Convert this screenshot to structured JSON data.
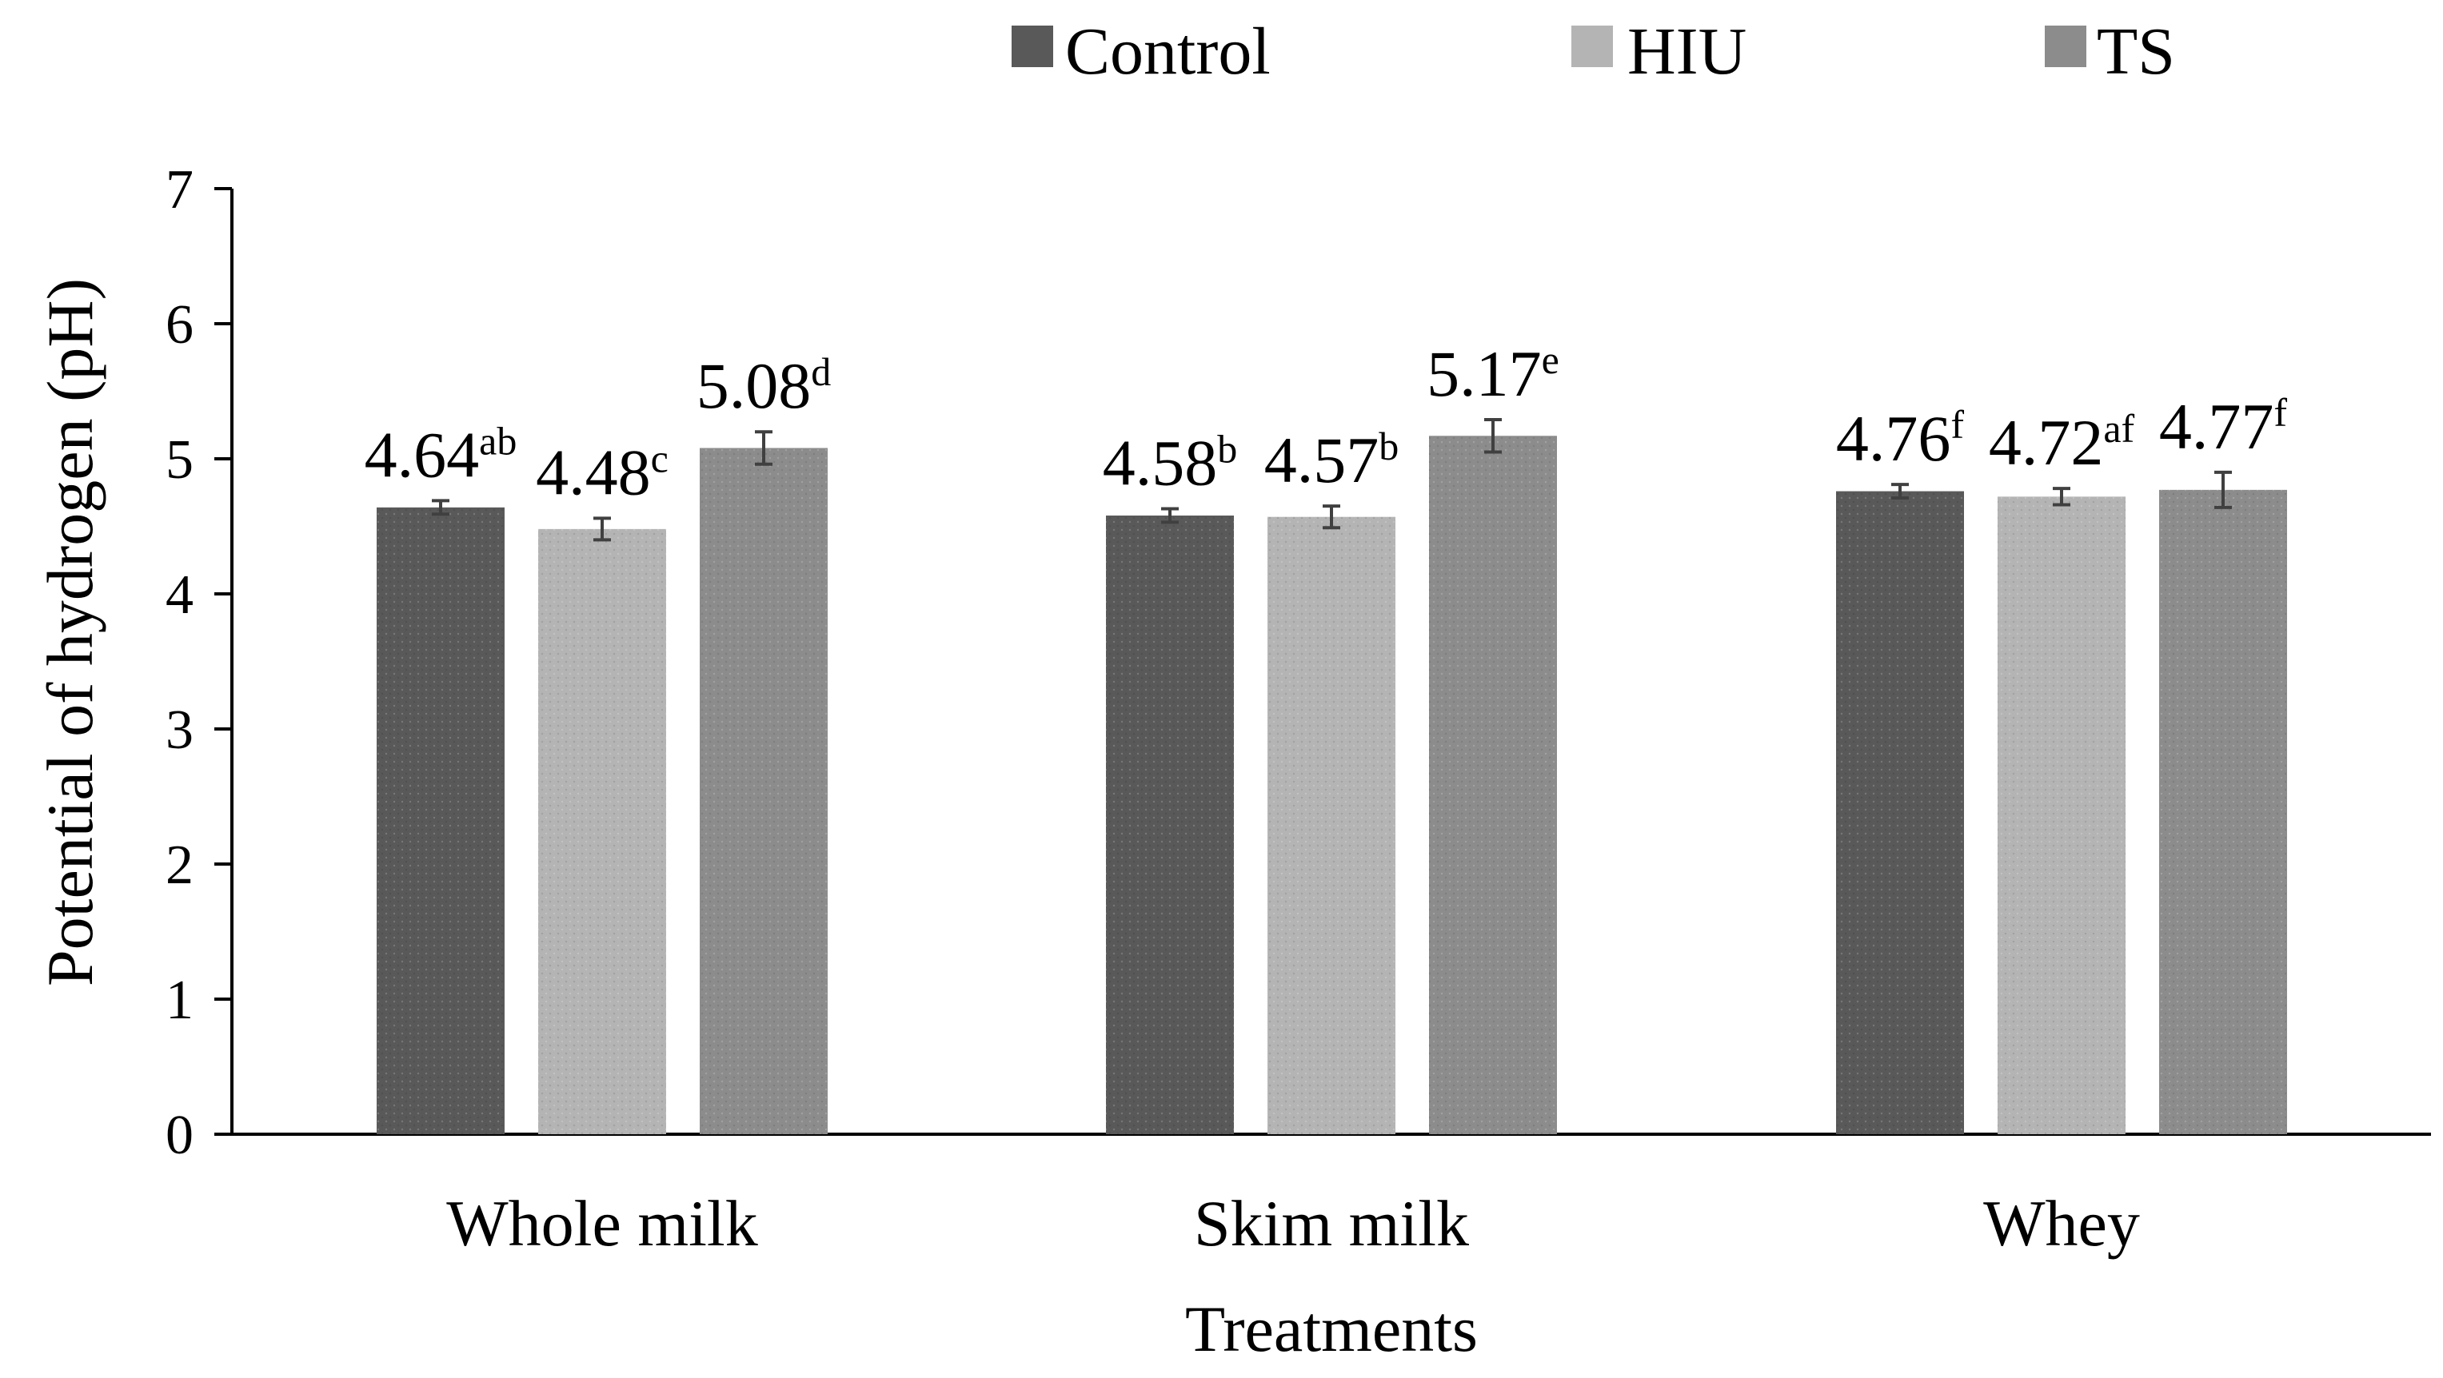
{
  "chart_data": {
    "type": "bar",
    "title": "",
    "xlabel": "Treatments",
    "ylabel": "Potential of hydrogen (pH)",
    "ylim": [
      0,
      7
    ],
    "yticks": [
      "0",
      "1",
      "2",
      "3",
      "4",
      "5",
      "6",
      "7"
    ],
    "categories": [
      "Whole milk",
      "Skim milk",
      "Whey"
    ],
    "legend_position": "top-center",
    "series": [
      {
        "name": "Control",
        "color": "#595959",
        "values": [
          4.64,
          4.58,
          4.76
        ],
        "errors": [
          0.05,
          0.05,
          0.05
        ],
        "labels": [
          "4.64",
          "4.58",
          "4.76"
        ],
        "superscripts": [
          "ab",
          "b",
          "f"
        ]
      },
      {
        "name": "HIU",
        "color": "#b4b4b4",
        "values": [
          4.48,
          4.57,
          4.72
        ],
        "errors": [
          0.08,
          0.08,
          0.06
        ],
        "labels": [
          "4.48",
          "4.57",
          "4.72"
        ],
        "superscripts": [
          "c",
          "b",
          "af"
        ]
      },
      {
        "name": "TS",
        "color": "#8c8c8c",
        "values": [
          5.08,
          5.17,
          4.77
        ],
        "errors": [
          0.12,
          0.12,
          0.13
        ],
        "labels": [
          "5.08",
          "5.17",
          "4.77"
        ],
        "superscripts": [
          "d",
          "e",
          "f"
        ]
      }
    ]
  }
}
